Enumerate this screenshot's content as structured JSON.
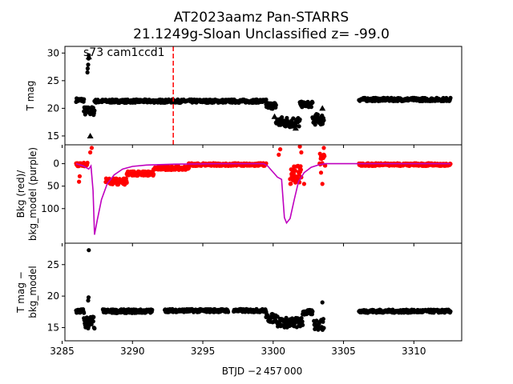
{
  "title_line1": "AT2023aamz  Pan-STARRS",
  "title_line2": "21.1249g-Sloan Unclassified z= -99.0",
  "panel_label": "s73 cam1ccd1",
  "xlabel": "BTJD −2 457 000",
  "colors": {
    "points": "#000000",
    "background": "#ff0000",
    "model": "#bf00bf",
    "marker_line": "#ff0000"
  },
  "chart_data": [
    {
      "type": "scatter",
      "name": "top",
      "ylabel": "T mag",
      "xlim": [
        3285.2,
        3313.4
      ],
      "ylim": [
        31.2,
        13.4
      ],
      "inverted_y": true,
      "xticks": [
        3285,
        3290,
        3295,
        3300,
        3305,
        3310
      ],
      "yticks": [
        15,
        20,
        25,
        30
      ],
      "vline_x": 3292.9,
      "segments": [
        {
          "x0": 3286.0,
          "x1": 3286.55,
          "y": 21.5,
          "spread": 0.7
        },
        {
          "x0": 3286.55,
          "x1": 3287.3,
          "y": 19.5,
          "spread": 1.6
        },
        {
          "x0": 3287.3,
          "x1": 3299.5,
          "y": 21.3,
          "spread": 0.6
        },
        {
          "x0": 3299.5,
          "x1": 3300.2,
          "y": 20.5,
          "spread": 1.2
        },
        {
          "x0": 3300.2,
          "x1": 3301.9,
          "y": 17.5,
          "spread": 2.0
        },
        {
          "x0": 3301.9,
          "x1": 3302.8,
          "y": 20.7,
          "spread": 1.0
        },
        {
          "x0": 3302.8,
          "x1": 3303.6,
          "y": 18.0,
          "spread": 2.0
        },
        {
          "x0": 3306.1,
          "x1": 3312.6,
          "y": 21.6,
          "spread": 0.6
        }
      ],
      "outliers": [
        [
          3286.8,
          26.5
        ],
        [
          3286.82,
          27.2
        ],
        [
          3286.85,
          27.9
        ],
        [
          3286.88,
          29.0
        ],
        [
          3286.9,
          29.6
        ]
      ],
      "triangles": [
        [
          3286.9,
          29.3
        ],
        [
          3287.0,
          15.0
        ],
        [
          3300.1,
          18.5
        ],
        [
          3303.5,
          20.0
        ],
        [
          3301.6,
          16.4
        ]
      ]
    },
    {
      "type": "scatter+line",
      "name": "middle",
      "ylabel": "Bkg (red)/\nbkg_model (purple)",
      "xlim": [
        3285.2,
        3313.4
      ],
      "ylim": [
        -42,
        177
      ],
      "xticks": [
        3285,
        3290,
        3295,
        3300,
        3305,
        3310
      ],
      "yticks": [
        0,
        50,
        100
      ],
      "model": [
        [
          3286.0,
          0
        ],
        [
          3286.5,
          5
        ],
        [
          3286.9,
          12
        ],
        [
          3287.05,
          5
        ],
        [
          3287.2,
          60
        ],
        [
          3287.3,
          158
        ],
        [
          3287.5,
          125
        ],
        [
          3287.8,
          80
        ],
        [
          3288.2,
          45
        ],
        [
          3288.7,
          25
        ],
        [
          3289.3,
          12
        ],
        [
          3290.0,
          6
        ],
        [
          3291.0,
          3
        ],
        [
          3293.0,
          1
        ],
        [
          3296.0,
          0
        ],
        [
          3299.3,
          0
        ],
        [
          3299.6,
          5
        ],
        [
          3300.3,
          30
        ],
        [
          3300.6,
          35
        ],
        [
          3300.8,
          120
        ],
        [
          3300.95,
          132
        ],
        [
          3301.2,
          122
        ],
        [
          3301.5,
          80
        ],
        [
          3301.8,
          40
        ],
        [
          3302.2,
          20
        ],
        [
          3302.7,
          8
        ],
        [
          3303.2,
          3
        ],
        [
          3303.7,
          0
        ],
        [
          3306.1,
          0
        ],
        [
          3312.6,
          0
        ]
      ],
      "red_segments": [
        {
          "x0": 3286.0,
          "x1": 3286.8,
          "y": 2,
          "spread": 8
        },
        {
          "x0": 3288.1,
          "x1": 3289.6,
          "y": 40,
          "spread": 14
        },
        {
          "x0": 3289.6,
          "x1": 3291.5,
          "y": 22,
          "spread": 10
        },
        {
          "x0": 3291.5,
          "x1": 3294.0,
          "y": 10,
          "spread": 8
        },
        {
          "x0": 3294.0,
          "x1": 3299.5,
          "y": 2,
          "spread": 6
        },
        {
          "x0": 3301.2,
          "x1": 3302.0,
          "y": 25,
          "spread": 40
        },
        {
          "x0": 3303.3,
          "x1": 3303.7,
          "y": -10,
          "spread": 30
        },
        {
          "x0": 3306.1,
          "x1": 3312.6,
          "y": 2,
          "spread": 6
        }
      ],
      "red_outliers": [
        [
          3286.2,
          40
        ],
        [
          3286.25,
          28
        ],
        [
          3287.1,
          -35
        ],
        [
          3287.0,
          -25
        ],
        [
          3300.4,
          -20
        ],
        [
          3300.5,
          -32
        ],
        [
          3301.9,
          -38
        ],
        [
          3302.0,
          -25
        ],
        [
          3302.2,
          45
        ],
        [
          3303.5,
          45
        ],
        [
          3303.6,
          -35
        ],
        [
          3303.4,
          20
        ]
      ]
    },
    {
      "type": "scatter",
      "name": "bottom",
      "ylabel": "T mag −\nbkg_model",
      "xlim": [
        3285.2,
        3313.4
      ],
      "ylim": [
        28.4,
        12.9
      ],
      "inverted_y": true,
      "xticks": [
        3285,
        3290,
        3295,
        3300,
        3305,
        3310
      ],
      "yticks": [
        15,
        20,
        25
      ],
      "segments": [
        {
          "x0": 3286.0,
          "x1": 3286.55,
          "y": 17.6,
          "spread": 0.7
        },
        {
          "x0": 3286.55,
          "x1": 3287.3,
          "y": 15.8,
          "spread": 2.2
        },
        {
          "x0": 3287.9,
          "x1": 3291.4,
          "y": 17.6,
          "spread": 0.6
        },
        {
          "x0": 3292.3,
          "x1": 3296.8,
          "y": 17.7,
          "spread": 0.5
        },
        {
          "x0": 3297.2,
          "x1": 3299.5,
          "y": 17.7,
          "spread": 0.5
        },
        {
          "x0": 3299.5,
          "x1": 3300.3,
          "y": 16.5,
          "spread": 1.4
        },
        {
          "x0": 3300.3,
          "x1": 3302.1,
          "y": 15.8,
          "spread": 1.6
        },
        {
          "x0": 3302.1,
          "x1": 3302.8,
          "y": 17.4,
          "spread": 0.8
        },
        {
          "x0": 3302.9,
          "x1": 3303.6,
          "y": 15.5,
          "spread": 1.8
        },
        {
          "x0": 3306.1,
          "x1": 3312.6,
          "y": 17.6,
          "spread": 0.5
        }
      ],
      "outliers": [
        [
          3286.85,
          19.3
        ],
        [
          3286.88,
          19.8
        ],
        [
          3286.9,
          27.3
        ],
        [
          3303.5,
          19.0
        ]
      ]
    }
  ]
}
